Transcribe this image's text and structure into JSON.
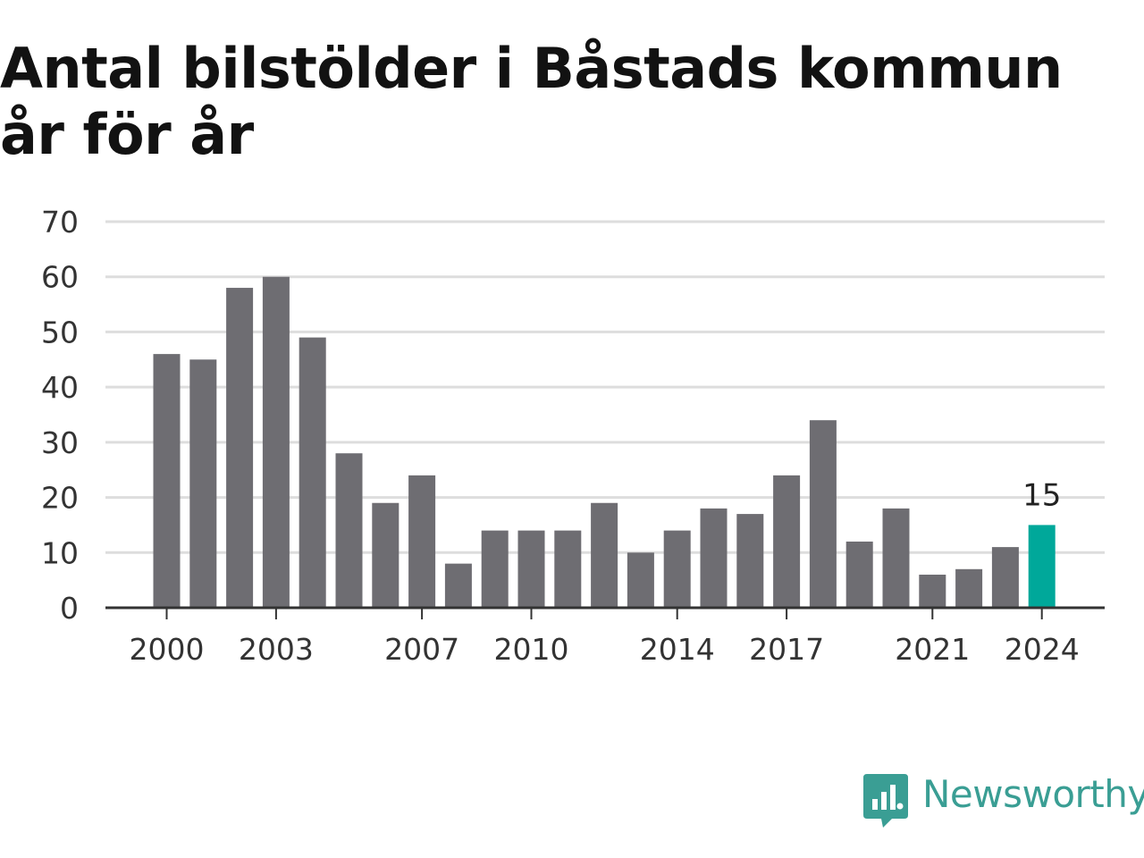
{
  "chart_data": {
    "type": "bar",
    "title": "Antal bilstölder i Båstads kommun år för år",
    "categories": [
      "2000",
      "2001",
      "2002",
      "2003",
      "2004",
      "2005",
      "2006",
      "2007",
      "2008",
      "2009",
      "2010",
      "2011",
      "2012",
      "2013",
      "2014",
      "2015",
      "2016",
      "2017",
      "2018",
      "2019",
      "2020",
      "2021",
      "2022",
      "2023",
      "2024"
    ],
    "values": [
      46,
      45,
      58,
      60,
      49,
      28,
      19,
      24,
      8,
      14,
      14,
      14,
      19,
      10,
      14,
      18,
      17,
      24,
      34,
      12,
      18,
      6,
      7,
      11,
      15
    ],
    "x_tick_labels": [
      "2000",
      "2003",
      "2007",
      "2010",
      "2014",
      "2017",
      "2021",
      "2024"
    ],
    "y_ticks": [
      0,
      10,
      20,
      30,
      40,
      50,
      60,
      70
    ],
    "ylim": [
      0,
      70
    ],
    "grid": true,
    "highlight": {
      "category": "2024",
      "label": "15"
    },
    "colors": {
      "bar": "#6e6d72",
      "highlight": "#00a89a",
      "grid": "#dddddd",
      "axis": "#333333"
    }
  },
  "brand": {
    "name": "Newsworthy",
    "icon": "newsworthy-logo-icon"
  }
}
